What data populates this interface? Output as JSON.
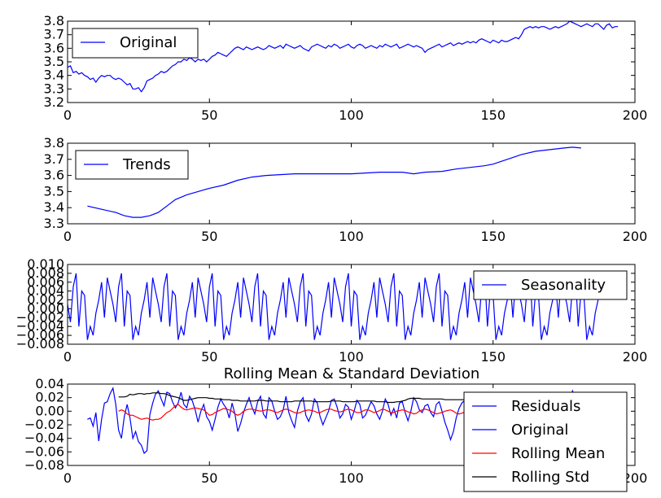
{
  "chart_data": [
    {
      "type": "line",
      "xlim": [
        0,
        200
      ],
      "ylim": [
        3.2,
        3.8
      ],
      "x_ticks": [
        "0",
        "50",
        "100",
        "150",
        "200"
      ],
      "y_ticks": [
        "3.2",
        "3.3",
        "3.4",
        "3.5",
        "3.6",
        "3.7",
        "3.8"
      ],
      "legend_position": "top-left",
      "series": [
        {
          "name": "Original",
          "color": "#0000ff",
          "x_start": 0,
          "values": [
            3.46,
            3.47,
            3.42,
            3.43,
            3.41,
            3.42,
            3.4,
            3.39,
            3.37,
            3.38,
            3.35,
            3.38,
            3.4,
            3.39,
            3.4,
            3.4,
            3.38,
            3.37,
            3.38,
            3.37,
            3.35,
            3.33,
            3.34,
            3.3,
            3.3,
            3.31,
            3.28,
            3.31,
            3.36,
            3.37,
            3.38,
            3.4,
            3.41,
            3.43,
            3.42,
            3.43,
            3.45,
            3.47,
            3.48,
            3.5,
            3.5,
            3.52,
            3.51,
            3.53,
            3.52,
            3.5,
            3.52,
            3.51,
            3.52,
            3.5,
            3.52,
            3.54,
            3.55,
            3.57,
            3.56,
            3.55,
            3.54,
            3.56,
            3.58,
            3.6,
            3.61,
            3.6,
            3.59,
            3.61,
            3.6,
            3.59,
            3.6,
            3.61,
            3.6,
            3.59,
            3.6,
            3.62,
            3.61,
            3.6,
            3.61,
            3.62,
            3.6,
            3.63,
            3.62,
            3.61,
            3.6,
            3.61,
            3.62,
            3.6,
            3.59,
            3.58,
            3.61,
            3.62,
            3.63,
            3.62,
            3.61,
            3.6,
            3.62,
            3.61,
            3.63,
            3.62,
            3.6,
            3.61,
            3.62,
            3.63,
            3.61,
            3.6,
            3.62,
            3.63,
            3.62,
            3.6,
            3.61,
            3.62,
            3.61,
            3.6,
            3.62,
            3.61,
            3.63,
            3.62,
            3.61,
            3.62,
            3.63,
            3.6,
            3.61,
            3.62,
            3.63,
            3.62,
            3.61,
            3.62,
            3.61,
            3.6,
            3.57,
            3.59,
            3.6,
            3.61,
            3.62,
            3.63,
            3.61,
            3.62,
            3.63,
            3.64,
            3.62,
            3.63,
            3.64,
            3.63,
            3.64,
            3.65,
            3.64,
            3.65,
            3.64,
            3.66,
            3.67,
            3.66,
            3.65,
            3.64,
            3.66,
            3.65,
            3.64,
            3.66,
            3.65,
            3.65,
            3.66,
            3.67,
            3.68,
            3.67,
            3.7,
            3.74,
            3.75,
            3.76,
            3.75,
            3.76,
            3.75,
            3.76,
            3.76,
            3.75,
            3.74,
            3.75,
            3.76,
            3.75,
            3.76,
            3.77,
            3.78,
            3.8,
            3.79,
            3.78,
            3.77,
            3.76,
            3.77,
            3.78,
            3.77,
            3.76,
            3.78,
            3.78,
            3.76,
            3.74,
            3.77,
            3.78,
            3.75,
            3.76,
            3.76
          ]
        }
      ]
    },
    {
      "type": "line",
      "xlim": [
        0,
        200
      ],
      "ylim": [
        3.3,
        3.8
      ],
      "x_ticks": [
        "0",
        "50",
        "100",
        "150",
        "200"
      ],
      "y_ticks": [
        "3.3",
        "3.4",
        "3.5",
        "3.6",
        "3.7",
        "3.8"
      ],
      "legend_position": "top-left",
      "series": [
        {
          "name": "Trends",
          "color": "#0000ff",
          "points": [
            [
              7,
              3.41
            ],
            [
              12,
              3.39
            ],
            [
              17,
              3.37
            ],
            [
              20,
              3.35
            ],
            [
              23,
              3.34
            ],
            [
              26,
              3.34
            ],
            [
              29,
              3.35
            ],
            [
              32,
              3.37
            ],
            [
              35,
              3.41
            ],
            [
              38,
              3.45
            ],
            [
              42,
              3.48
            ],
            [
              46,
              3.5
            ],
            [
              50,
              3.52
            ],
            [
              55,
              3.54
            ],
            [
              60,
              3.57
            ],
            [
              65,
              3.59
            ],
            [
              70,
              3.6
            ],
            [
              80,
              3.61
            ],
            [
              90,
              3.61
            ],
            [
              100,
              3.61
            ],
            [
              110,
              3.62
            ],
            [
              118,
              3.62
            ],
            [
              122,
              3.61
            ],
            [
              126,
              3.62
            ],
            [
              132,
              3.625
            ],
            [
              137,
              3.64
            ],
            [
              142,
              3.65
            ],
            [
              147,
              3.66
            ],
            [
              150,
              3.67
            ],
            [
              155,
              3.7
            ],
            [
              160,
              3.73
            ],
            [
              165,
              3.75
            ],
            [
              170,
              3.76
            ],
            [
              175,
              3.77
            ],
            [
              178,
              3.775
            ],
            [
              181,
              3.77
            ]
          ]
        }
      ]
    },
    {
      "type": "line",
      "xlim": [
        0,
        200
      ],
      "ylim": [
        -0.008,
        0.01
      ],
      "x_ticks": [
        "0",
        "50",
        "100",
        "150",
        "200"
      ],
      "y_ticks": [
        "0.010",
        "0.008",
        "0.006",
        "0.004",
        "0.002",
        "0.000",
        "−0.002",
        "−0.004",
        "−0.006",
        "−0.008"
      ],
      "legend_position": "top-right",
      "series": [
        {
          "name": "Seasonality",
          "color": "#0000ff",
          "x_start": 0,
          "period": 16,
          "pattern": [
            0.001,
            -0.003,
            0.005,
            0.008,
            -0.004,
            0.004,
            0.003,
            -0.007,
            -0.004,
            -0.006,
            -0.001,
            0.002,
            0.006,
            -0.002,
            0.007,
            0.004
          ]
        }
      ]
    },
    {
      "type": "line",
      "title": "Rolling Mean & Standard Deviation",
      "xlim": [
        0,
        200
      ],
      "ylim": [
        -0.08,
        0.04
      ],
      "x_ticks": [
        "0",
        "50",
        "100",
        "150",
        "200"
      ],
      "y_ticks": [
        "0.04",
        "0.02",
        "0.00",
        "−0.02",
        "−0.04",
        "−0.06",
        "−0.08"
      ],
      "legend_position": "right",
      "series": [
        {
          "name": "Residuals",
          "color": "#0000ff",
          "x_start": 7,
          "values": [
            -0.012,
            -0.01,
            -0.022,
            -0.002,
            -0.044,
            -0.012,
            0.012,
            0.014,
            0.026,
            0.034,
            0.01,
            -0.028,
            -0.04,
            -0.008,
            0.01,
            -0.01,
            -0.04,
            -0.03,
            -0.045,
            -0.05,
            -0.062,
            -0.058,
            -0.005,
            0.012,
            0.025,
            0.03,
            0.018,
            0.008,
            0.028,
            0.026,
            0.014,
            0.005,
            0.012,
            0.028,
            0.01,
            0.005,
            0.022,
            0.015,
            0.002,
            -0.016,
            0.0,
            0.01,
            -0.008,
            -0.015,
            -0.028,
            -0.012,
            0.006,
            0.018,
            0.01,
            0.004,
            -0.01,
            0.012,
            -0.004,
            -0.03,
            -0.018,
            -0.002,
            0.01,
            0.02,
            0.006,
            -0.004,
            0.014,
            0.022,
            -0.004,
            -0.01,
            0.02,
            0.015,
            0.0,
            -0.012,
            -0.008,
            0.002,
            0.022,
            -0.002,
            -0.014,
            -0.024,
            0.0,
            0.014,
            0.02,
            -0.006,
            -0.015,
            -0.004,
            0.018,
            0.012,
            -0.008,
            -0.02,
            -0.01,
            0.0,
            0.016,
            0.018,
            0.006,
            -0.01,
            -0.004,
            0.01,
            0.006,
            -0.012,
            0.0,
            0.016,
            0.01,
            -0.01,
            -0.006,
            0.004,
            0.014,
            0.008,
            -0.004,
            -0.012,
            0.0,
            0.018,
            0.01,
            -0.006,
            0.004,
            -0.01,
            0.012,
            0.014,
            -0.002,
            -0.014,
            0.0,
            0.02,
            0.014,
            0.002,
            -0.002,
            0.008,
            0.01,
            -0.002,
            -0.008,
            0.01,
            0.014,
            0.0,
            -0.016,
            -0.028,
            -0.042,
            -0.03,
            -0.01,
            0.004,
            0.012,
            0.016,
            0.004,
            -0.004,
            0.01,
            0.014,
            0.002,
            -0.008,
            0.006,
            0.016,
            0.004,
            -0.01,
            -0.004,
            0.012,
            0.008,
            -0.006,
            -0.012,
            0.006,
            0.014,
            0.002,
            -0.008,
            0.004,
            0.012,
            0.004,
            -0.008,
            -0.004,
            0.008,
            0.012,
            0.002,
            -0.01,
            0.006,
            0.014,
            0.004,
            -0.006,
            0.01,
            0.02,
            0.012,
            0.0,
            0.012,
            0.03,
            0.02,
            0.004,
            -0.002,
            0.012,
            0.004
          ]
        },
        {
          "name": "Original",
          "color": "#0000ff",
          "same_as": "Residuals"
        },
        {
          "name": "Rolling Mean",
          "color": "#ff0000",
          "x_start": 18,
          "values": [
            0.0,
            0.002,
            0.0,
            -0.004,
            -0.006,
            -0.006,
            -0.008,
            -0.01,
            -0.012,
            -0.011,
            -0.01,
            -0.012,
            -0.013,
            -0.012,
            -0.012,
            -0.01,
            -0.006,
            -0.002,
            0.0,
            0.004,
            0.008,
            0.01,
            0.006,
            0.003,
            0.002,
            0.003,
            0.004,
            0.005,
            0.004,
            0.003,
            0.002,
            -0.002,
            -0.006,
            -0.005,
            -0.002,
            0.0,
            0.002,
            0.004,
            0.003,
            0.002,
            0.0,
            -0.004,
            -0.006,
            -0.004,
            0.0,
            0.002,
            0.003,
            0.003,
            0.002,
            0.001,
            0.0,
            0.001,
            0.002,
            0.002,
            0.001,
            -0.001,
            -0.002,
            0.0,
            0.002,
            0.003,
            0.002,
            0.0,
            -0.002,
            -0.003,
            -0.002,
            0.0,
            0.001,
            0.002,
            0.001,
            0.0,
            -0.002,
            -0.002,
            0.0,
            0.002,
            0.003,
            0.003,
            0.001,
            0.0,
            -0.001,
            0.0,
            0.002,
            0.003,
            0.002,
            0.0,
            -0.002,
            -0.002,
            0.0,
            0.002,
            0.002,
            0.0,
            -0.002,
            -0.001,
            0.001,
            0.003,
            0.002,
            0.0,
            -0.002,
            -0.002,
            0.0,
            0.001,
            0.002,
            0.001,
            -0.001,
            -0.002,
            -0.004,
            -0.003,
            0.0,
            0.002,
            0.003,
            0.002,
            0.0,
            -0.002,
            -0.004,
            -0.003,
            -0.002,
            0.0,
            0.001,
            0.002,
            0.0,
            -0.003,
            -0.004,
            -0.003,
            -0.001,
            0.0,
            0.001,
            -0.002,
            -0.004,
            -0.003,
            -0.002,
            -0.001,
            0.0,
            0.001,
            0.002,
            0.003
          ]
        },
        {
          "name": "Rolling Std",
          "color": "#000000",
          "x_start": 18,
          "values": [
            0.021,
            0.021,
            0.021,
            0.022,
            0.025,
            0.024,
            0.025,
            0.026,
            0.026,
            0.025,
            0.026,
            0.026,
            0.027,
            0.027,
            0.027,
            0.026,
            0.026,
            0.025,
            0.023,
            0.022,
            0.021,
            0.02,
            0.018,
            0.016,
            0.016,
            0.017,
            0.018,
            0.019,
            0.02,
            0.02,
            0.02,
            0.02,
            0.019,
            0.019,
            0.018,
            0.018,
            0.018,
            0.017,
            0.017,
            0.017,
            0.016,
            0.016,
            0.016,
            0.015,
            0.015,
            0.015,
            0.015,
            0.015,
            0.015,
            0.016,
            0.016,
            0.016,
            0.015,
            0.015,
            0.015,
            0.015,
            0.015,
            0.014,
            0.014,
            0.014,
            0.014,
            0.014,
            0.015,
            0.015,
            0.015,
            0.015,
            0.015,
            0.015,
            0.015,
            0.014,
            0.014,
            0.014,
            0.014,
            0.014,
            0.014,
            0.015,
            0.015,
            0.015,
            0.015,
            0.014,
            0.014,
            0.014,
            0.014,
            0.014,
            0.015,
            0.015,
            0.015,
            0.015,
            0.015,
            0.015,
            0.015,
            0.014,
            0.014,
            0.014,
            0.014,
            0.013,
            0.013,
            0.013,
            0.014,
            0.014,
            0.015,
            0.016,
            0.018,
            0.019,
            0.019,
            0.019,
            0.019,
            0.018,
            0.018,
            0.018,
            0.018,
            0.018,
            0.018,
            0.018,
            0.018,
            0.017,
            0.017,
            0.017,
            0.017,
            0.017,
            0.017,
            0.017,
            0.017,
            0.017,
            0.017,
            0.017,
            0.017,
            0.017,
            0.017,
            0.017,
            0.017,
            0.017,
            0.017,
            0.017
          ]
        }
      ]
    }
  ]
}
